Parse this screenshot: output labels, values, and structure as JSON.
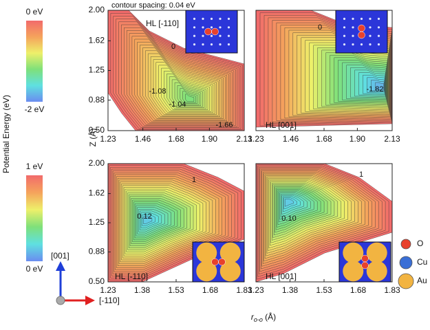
{
  "caption": "contour spacing: 0.04 eV",
  "colorbar_label": "Potential Energy (eV)",
  "colorbars": [
    {
      "top": "0 eV",
      "bottom": "-2 eV"
    },
    {
      "top": "1 eV",
      "bottom": "0 eV"
    }
  ],
  "y_label": "Z (Å)",
  "x_label": {
    "main": "r",
    "sub": "o-o",
    "unit": " (Å)"
  },
  "legend": [
    {
      "name": "O",
      "color": "#e8412c"
    },
    {
      "name": "Cu",
      "color": "#3a6fd6"
    },
    {
      "name": "Au",
      "color": "#f2b441"
    }
  ],
  "axes_icon": {
    "up": "[001]",
    "right": "[-110]"
  },
  "chart_data": [
    {
      "type": "contour",
      "title": "HL [-110]",
      "xlim": [
        1.23,
        2.13
      ],
      "ylim": [
        0.5,
        2.0
      ],
      "xticks": [
        1.23,
        1.46,
        1.68,
        {
          "value": 1.9,
          "label": "1.90"
        },
        2.13
      ],
      "yticks": [
        {
          "value": 0.5,
          "label": "0.50"
        },
        0.88,
        1.25,
        1.62,
        {
          "value": 2.0,
          "label": "2.00"
        }
      ],
      "annotations": [
        "0",
        "-1.08",
        "-1.04",
        "-1.66"
      ]
    },
    {
      "type": "contour",
      "title": "HL [001]",
      "xlim": [
        1.23,
        2.13
      ],
      "ylim": [
        0.5,
        2.0
      ],
      "xticks": [
        1.23,
        1.46,
        1.68,
        {
          "value": 1.9,
          "label": "1.90"
        },
        2.13
      ],
      "annotations": [
        "0",
        "-1.82"
      ]
    },
    {
      "type": "contour",
      "title": "HL [-110]",
      "xlim": [
        1.23,
        1.83
      ],
      "ylim": [
        0.5,
        2.0
      ],
      "xticks": [
        1.23,
        1.38,
        1.53,
        1.68,
        1.83
      ],
      "yticks": [
        {
          "value": 0.5,
          "label": "0.50"
        },
        0.88,
        1.25,
        1.62,
        {
          "value": 2.0,
          "label": "2.00"
        }
      ],
      "annotations": [
        "1",
        "0.12"
      ]
    },
    {
      "type": "contour",
      "title": "HL [001]",
      "xlim": [
        1.23,
        1.83
      ],
      "ylim": [
        0.5,
        2.0
      ],
      "xticks": [
        1.23,
        1.38,
        1.53,
        1.68,
        1.83
      ],
      "annotations": [
        "1",
        "0.10"
      ]
    }
  ]
}
